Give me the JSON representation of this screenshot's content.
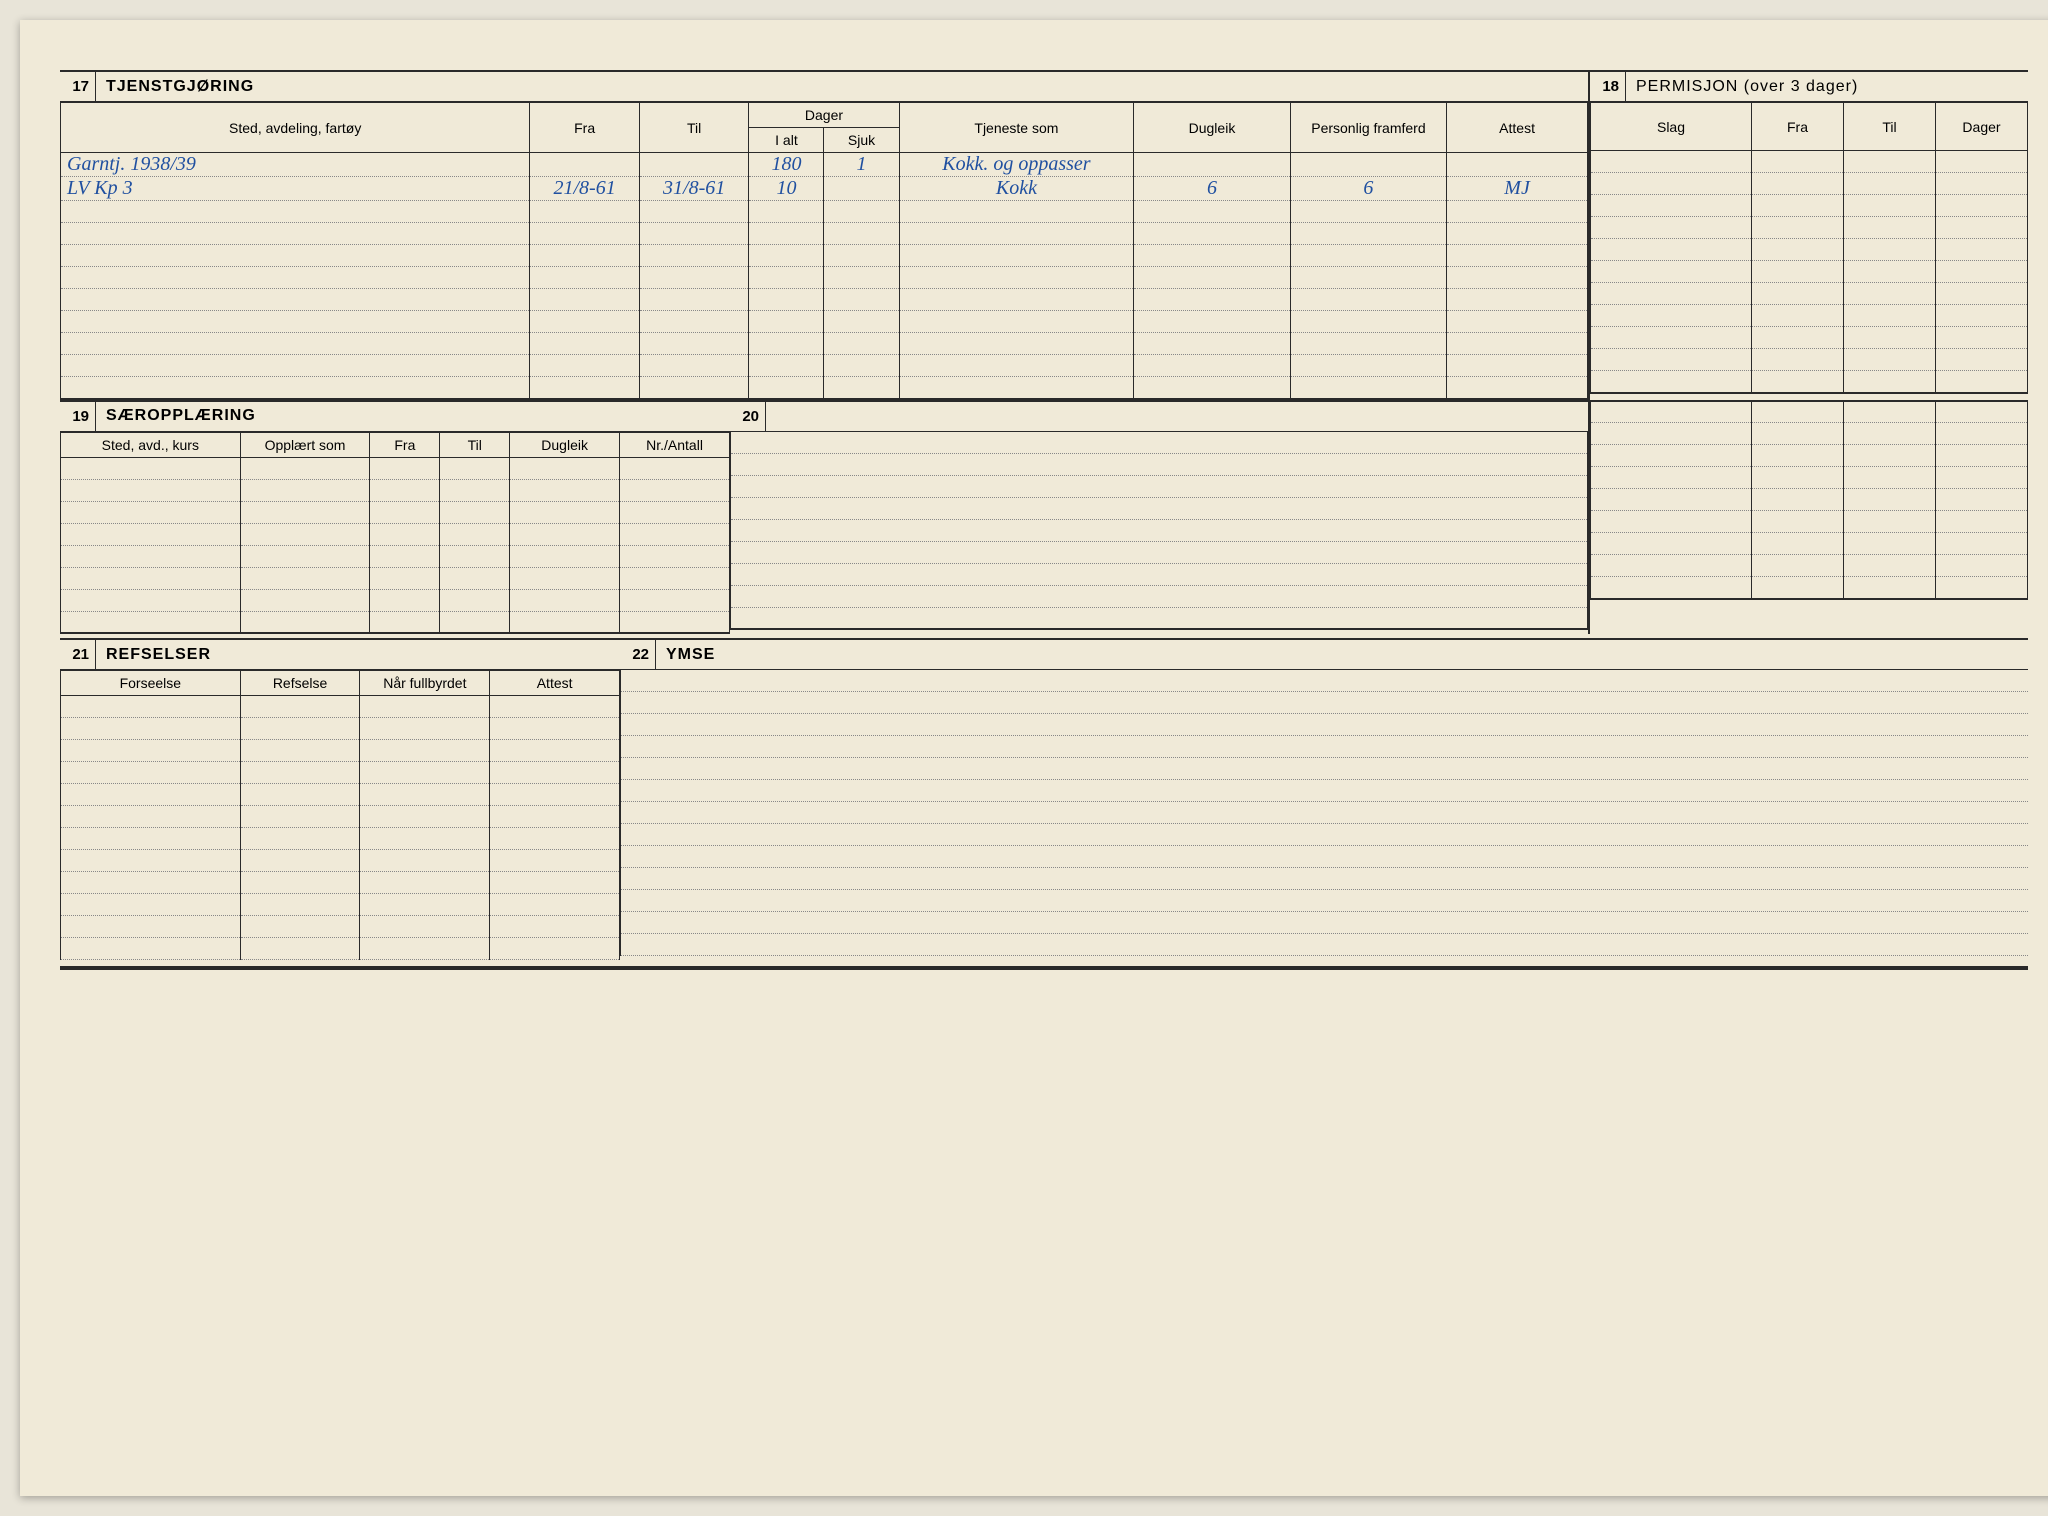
{
  "colors": {
    "paper": "#f0ead8",
    "ink": "#2a2a2a",
    "handwriting": "#2050a0",
    "dotted": "#888888"
  },
  "typography": {
    "header_fontsize": 16,
    "label_fontsize": 14,
    "handwritten_fontsize": 20
  },
  "section17": {
    "num": "17",
    "title": "TJENSTGJØRING",
    "headers": {
      "sted": "Sted, avdeling, fartøy",
      "fra": "Fra",
      "til": "Til",
      "dager": "Dager",
      "ialt": "I alt",
      "sjuk": "Sjuk",
      "tjeneste": "Tjeneste som",
      "dugleik": "Dugleik",
      "personlig": "Personlig framferd",
      "attest": "Attest"
    },
    "rows": [
      {
        "sted": "Garntj.                    1938/39",
        "fra": "",
        "til": "",
        "ialt": "180",
        "sjuk": "1",
        "tjeneste": "Kokk. og oppasser",
        "dugleik": "",
        "personlig": "",
        "attest": ""
      },
      {
        "sted": "LV Kp 3",
        "fra": "21/8-61",
        "til": "31/8-61",
        "ialt": "10",
        "sjuk": "",
        "tjeneste": "Kokk",
        "dugleik": "6",
        "personlig": "6",
        "attest": "MJ"
      }
    ],
    "blank_rows": 9
  },
  "section18": {
    "num": "18",
    "title": "PERMISJON (over 3 dager)",
    "headers": {
      "slag": "Slag",
      "fra": "Fra",
      "til": "Til",
      "dager": "Dager"
    },
    "blank_rows": 11
  },
  "section19": {
    "num": "19",
    "title": "SÆROPPLÆRING",
    "headers": {
      "sted": "Sted, avd., kurs",
      "opplart": "Opplært som",
      "fra": "Fra",
      "til": "Til",
      "dugleik": "Dugleik",
      "nr": "Nr./Antall"
    },
    "blank_rows": 8
  },
  "section20": {
    "num": "20",
    "title": "",
    "blank_rows": 9
  },
  "section18b": {
    "blank_rows": 9
  },
  "section21": {
    "num": "21",
    "title": "REFSELSER",
    "headers": {
      "forseelse": "Forseelse",
      "refselse": "Refselse",
      "nar": "Når fullbyrdet",
      "attest": "Attest"
    },
    "blank_rows": 12
  },
  "section22": {
    "num": "22",
    "title": "YMSE",
    "blank_rows": 13
  }
}
